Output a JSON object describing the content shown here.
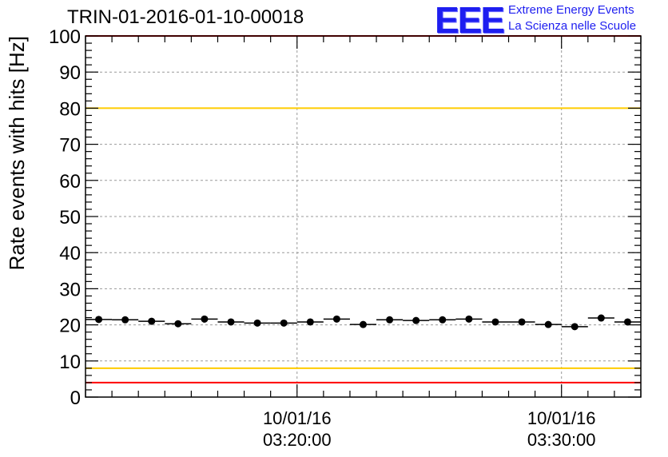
{
  "header": {
    "title": "TRIN-01-2016-01-10-00018",
    "logo_mark": "EEE",
    "logo_line1": "Extreme Energy Events",
    "logo_line2": "La Scienza nelle Scuole"
  },
  "colors": {
    "red_line": "#ff0000",
    "yellow_line": "#ffcc00",
    "marker": "#000000",
    "grid": "#999999",
    "logo": "#1e1ef0"
  },
  "chart_data": {
    "type": "scatter",
    "title": "TRIN-01-2016-01-10-00018",
    "xlabel": "",
    "ylabel": "Rate events with hits [Hz]",
    "x_start": "03:12:00",
    "x_end": "03:33:00",
    "x_tick_labels": [
      {
        "time": "03:20:00",
        "date": "10/01/16"
      },
      {
        "time": "03:30:00",
        "date": "10/01/16"
      }
    ],
    "ylim": [
      0,
      100
    ],
    "y_ticks": [
      0,
      10,
      20,
      30,
      40,
      50,
      60,
      70,
      80,
      90,
      100
    ],
    "grid": true,
    "reference_lines": [
      {
        "y": 100,
        "color": "red"
      },
      {
        "y": 80,
        "color": "yellow"
      },
      {
        "y": 8,
        "color": "yellow"
      },
      {
        "y": 4,
        "color": "red"
      }
    ],
    "series": [
      {
        "x": [
          "03:12:30",
          "03:13:30",
          "03:14:30",
          "03:15:30",
          "03:16:30",
          "03:17:30",
          "03:18:30",
          "03:19:30",
          "03:20:30",
          "03:21:30",
          "03:22:30",
          "03:23:30",
          "03:24:30",
          "03:25:30",
          "03:26:30",
          "03:27:30",
          "03:28:30",
          "03:29:30",
          "03:30:30",
          "03:31:30",
          "03:32:30"
        ],
        "values": [
          21.5,
          21.4,
          21.0,
          20.3,
          21.6,
          20.8,
          20.5,
          20.5,
          20.8,
          21.6,
          20.1,
          21.4,
          21.2,
          21.4,
          21.6,
          20.8,
          20.8,
          20.1,
          19.5,
          21.9,
          20.8
        ]
      }
    ]
  }
}
